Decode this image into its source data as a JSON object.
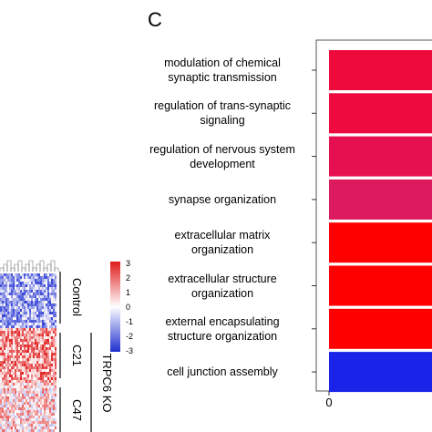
{
  "panel": {
    "letter": "C"
  },
  "chart_data": [
    {
      "type": "heatmap",
      "row_groups": [
        "Control",
        "C21",
        "C47"
      ],
      "super_group": "TRPC6 KO",
      "color_scale": {
        "min": -3,
        "max": 3,
        "ticks": [
          "3",
          "2",
          "1",
          "0",
          "-1",
          "-2",
          "-3"
        ],
        "low_color": "#1f2fd0",
        "mid_color": "#ffffff",
        "high_color": "#e01a1a"
      },
      "values": {
        "Control": -1.2,
        "C21": 1.4,
        "C47": 0.6
      }
    },
    {
      "type": "bar",
      "orientation": "horizontal",
      "categories": [
        "modulation of chemical\nsynaptic transmission",
        "regulation of trans-synaptic\nsignaling",
        "regulation of nervous system\ndevelopment",
        "synapse organization",
        "extracellular matrix\norganization",
        "extracellular structure\norganization",
        "external encapsulating\nstructure organization",
        "cell junction assembly"
      ],
      "bar_colors": [
        "#ee0a3a",
        "#ee0a3f",
        "#e61050",
        "#dc1a5e",
        "#ff0000",
        "#ff0000",
        "#ff0000",
        "#1a23e8"
      ],
      "x_ticks": [
        "0"
      ],
      "xlim_min": 0,
      "grid": false
    }
  ]
}
